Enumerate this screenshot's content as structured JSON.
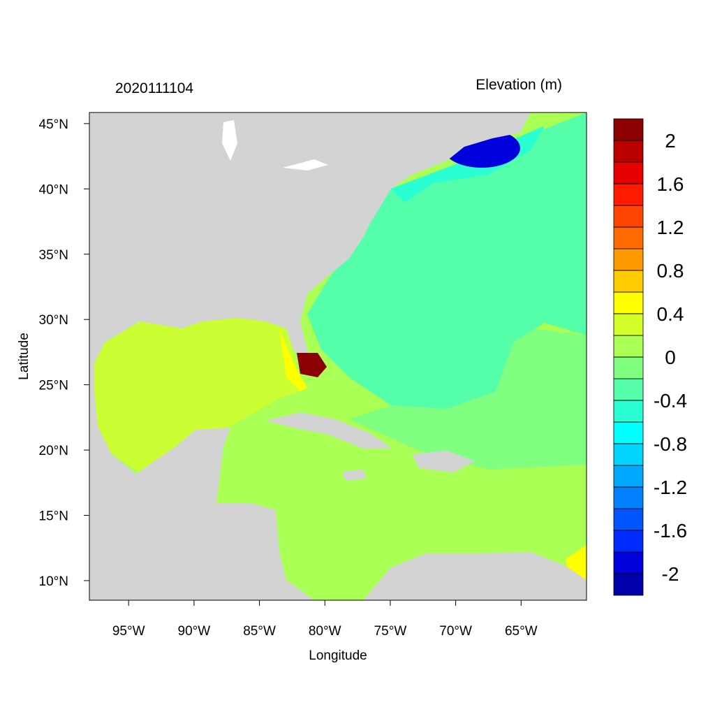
{
  "title_left": "2020111104",
  "title_right": "Elevation (m)",
  "x_axis": {
    "label": "Longitude",
    "lim": [
      -98,
      -60
    ],
    "ticks": [
      {
        "value": -95,
        "label": "95°W"
      },
      {
        "value": -90,
        "label": "90°W"
      },
      {
        "value": -85,
        "label": "85°W"
      },
      {
        "value": -80,
        "label": "80°W"
      },
      {
        "value": -75,
        "label": "75°W"
      },
      {
        "value": -70,
        "label": "70°W"
      },
      {
        "value": -65,
        "label": "65°W"
      }
    ]
  },
  "y_axis": {
    "label": "Latitude",
    "lim": [
      8.5,
      45.85
    ],
    "ticks": [
      {
        "value": 10,
        "label": "10°N"
      },
      {
        "value": 15,
        "label": "15°N"
      },
      {
        "value": 20,
        "label": "20°N"
      },
      {
        "value": 25,
        "label": "25°N"
      },
      {
        "value": 30,
        "label": "30°N"
      },
      {
        "value": 35,
        "label": "35°N"
      },
      {
        "value": 40,
        "label": "40°N"
      },
      {
        "value": 45,
        "label": "45°N"
      }
    ]
  },
  "colorbar": {
    "lim": [
      -2.2,
      2.2
    ],
    "ticks": [
      -2,
      -1.6,
      -1.2,
      -0.8,
      -0.4,
      0,
      0.4,
      0.8,
      1.2,
      1.6,
      2
    ],
    "colors": [
      "#0000aa",
      "#0000dd",
      "#002bff",
      "#0055ff",
      "#0080ff",
      "#00aaff",
      "#00d4ff",
      "#00ffff",
      "#2affd4",
      "#55ffaa",
      "#80ff80",
      "#aaff55",
      "#d4ff2a",
      "#ffff00",
      "#ffcc00",
      "#ff9900",
      "#ff6a00",
      "#ff4500",
      "#ff1a00",
      "#e60000",
      "#bb0000",
      "#8b0000"
    ]
  }
}
